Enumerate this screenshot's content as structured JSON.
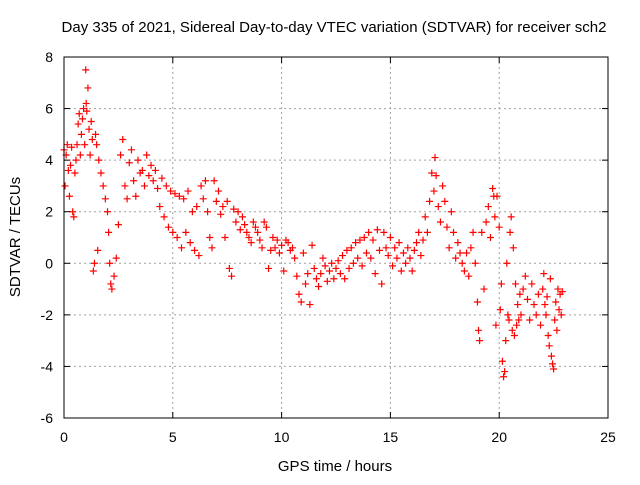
{
  "chart_data": {
    "type": "scatter",
    "title": "Day 335 of 2021, Sidereal Day-to-day VTEC variation (SDTVAR) for receiver sch2",
    "xlabel": "GPS time / hours",
    "ylabel": "SDTVAR / TECUs",
    "xlim": [
      0,
      25
    ],
    "ylim": [
      -6,
      8
    ],
    "xticks": [
      0,
      5,
      10,
      15,
      20,
      25
    ],
    "yticks": [
      -6,
      -4,
      -2,
      0,
      2,
      4,
      6,
      8
    ],
    "grid": true,
    "marker": "+",
    "color": "#ff0000",
    "series": [
      {
        "name": "SDTVAR",
        "points": [
          [
            0.0,
            4.4
          ],
          [
            0.05,
            3.0
          ],
          [
            0.1,
            4.2
          ],
          [
            0.15,
            4.6
          ],
          [
            0.2,
            3.6
          ],
          [
            0.25,
            2.6
          ],
          [
            0.3,
            3.8
          ],
          [
            0.35,
            4.5
          ],
          [
            0.4,
            2.0
          ],
          [
            0.45,
            1.8
          ],
          [
            0.5,
            3.5
          ],
          [
            0.55,
            4.0
          ],
          [
            0.6,
            4.6
          ],
          [
            0.65,
            5.4
          ],
          [
            0.7,
            5.8
          ],
          [
            0.75,
            4.2
          ],
          [
            0.8,
            5.0
          ],
          [
            0.85,
            5.6
          ],
          [
            0.9,
            6.0
          ],
          [
            0.95,
            4.6
          ],
          [
            1.0,
            7.5
          ],
          [
            1.02,
            6.2
          ],
          [
            1.05,
            5.9
          ],
          [
            1.1,
            6.8
          ],
          [
            1.15,
            5.2
          ],
          [
            1.2,
            4.2
          ],
          [
            1.25,
            5.5
          ],
          [
            1.3,
            4.8
          ],
          [
            1.35,
            -0.3
          ],
          [
            1.4,
            0.0
          ],
          [
            1.45,
            5.0
          ],
          [
            1.5,
            4.6
          ],
          [
            1.55,
            0.5
          ],
          [
            1.6,
            4.0
          ],
          [
            1.7,
            3.5
          ],
          [
            1.8,
            3.0
          ],
          [
            1.9,
            2.5
          ],
          [
            2.0,
            2.0
          ],
          [
            2.05,
            1.2
          ],
          [
            2.1,
            0.0
          ],
          [
            2.15,
            -0.8
          ],
          [
            2.2,
            -1.0
          ],
          [
            2.3,
            -0.5
          ],
          [
            2.4,
            0.2
          ],
          [
            2.5,
            1.5
          ],
          [
            2.6,
            4.2
          ],
          [
            2.7,
            4.8
          ],
          [
            2.8,
            3.0
          ],
          [
            2.9,
            2.5
          ],
          [
            3.0,
            3.9
          ],
          [
            3.1,
            4.4
          ],
          [
            3.2,
            3.2
          ],
          [
            3.3,
            2.6
          ],
          [
            3.4,
            4.0
          ],
          [
            3.5,
            3.5
          ],
          [
            3.6,
            3.6
          ],
          [
            3.7,
            3.0
          ],
          [
            3.8,
            4.2
          ],
          [
            3.9,
            3.4
          ],
          [
            4.0,
            3.8
          ],
          [
            4.1,
            3.2
          ],
          [
            4.2,
            3.6
          ],
          [
            4.3,
            2.9
          ],
          [
            4.4,
            2.2
          ],
          [
            4.5,
            3.3
          ],
          [
            4.6,
            1.8
          ],
          [
            4.7,
            3.0
          ],
          [
            4.8,
            1.4
          ],
          [
            4.9,
            2.8
          ],
          [
            5.0,
            1.2
          ],
          [
            5.1,
            2.7
          ],
          [
            5.2,
            1.0
          ],
          [
            5.3,
            2.6
          ],
          [
            5.4,
            0.6
          ],
          [
            5.5,
            2.5
          ],
          [
            5.6,
            1.2
          ],
          [
            5.7,
            2.8
          ],
          [
            5.8,
            0.8
          ],
          [
            5.9,
            2.0
          ],
          [
            6.0,
            0.5
          ],
          [
            6.1,
            2.2
          ],
          [
            6.2,
            0.3
          ],
          [
            6.3,
            3.0
          ],
          [
            6.4,
            2.5
          ],
          [
            6.5,
            3.2
          ],
          [
            6.6,
            2.0
          ],
          [
            6.7,
            1.0
          ],
          [
            6.8,
            0.6
          ],
          [
            6.9,
            3.2
          ],
          [
            7.0,
            2.4
          ],
          [
            7.1,
            2.8
          ],
          [
            7.2,
            1.9
          ],
          [
            7.3,
            2.2
          ],
          [
            7.4,
            1.0
          ],
          [
            7.5,
            2.4
          ],
          [
            7.6,
            -0.2
          ],
          [
            7.7,
            -0.5
          ],
          [
            7.8,
            2.1
          ],
          [
            7.9,
            1.6
          ],
          [
            8.0,
            2.0
          ],
          [
            8.1,
            1.3
          ],
          [
            8.2,
            1.8
          ],
          [
            8.3,
            1.5
          ],
          [
            8.4,
            1.2
          ],
          [
            8.5,
            1.0
          ],
          [
            8.6,
            0.8
          ],
          [
            8.7,
            1.6
          ],
          [
            8.8,
            1.4
          ],
          [
            8.9,
            1.2
          ],
          [
            9.0,
            0.9
          ],
          [
            9.1,
            0.6
          ],
          [
            9.2,
            1.6
          ],
          [
            9.3,
            1.4
          ],
          [
            9.4,
            -0.2
          ],
          [
            9.5,
            0.5
          ],
          [
            9.6,
            1.0
          ],
          [
            9.7,
            0.6
          ],
          [
            9.8,
            0.9
          ],
          [
            9.9,
            0.4
          ],
          [
            10.0,
            0.7
          ],
          [
            10.1,
            -0.3
          ],
          [
            10.2,
            0.9
          ],
          [
            10.3,
            0.8
          ],
          [
            10.4,
            0.5
          ],
          [
            10.5,
            0.6
          ],
          [
            10.6,
            0.2
          ],
          [
            10.7,
            -0.5
          ],
          [
            10.8,
            -1.2
          ],
          [
            10.9,
            -1.5
          ],
          [
            11.0,
            0.4
          ],
          [
            11.1,
            -0.8
          ],
          [
            11.2,
            -0.4
          ],
          [
            11.3,
            -1.6
          ],
          [
            11.4,
            0.7
          ],
          [
            11.5,
            -0.2
          ],
          [
            11.6,
            -0.6
          ],
          [
            11.7,
            -0.9
          ],
          [
            11.8,
            -0.4
          ],
          [
            11.9,
            0.2
          ],
          [
            12.0,
            -0.1
          ],
          [
            12.1,
            -0.7
          ],
          [
            12.2,
            -0.3
          ],
          [
            12.3,
            0.0
          ],
          [
            12.4,
            -0.6
          ],
          [
            12.5,
            -0.2
          ],
          [
            12.6,
            0.1
          ],
          [
            12.7,
            -0.4
          ],
          [
            12.8,
            0.3
          ],
          [
            12.9,
            -0.6
          ],
          [
            13.0,
            0.5
          ],
          [
            13.1,
            -0.2
          ],
          [
            13.2,
            0.6
          ],
          [
            13.3,
            0.0
          ],
          [
            13.4,
            0.8
          ],
          [
            13.5,
            0.2
          ],
          [
            13.6,
            0.9
          ],
          [
            13.7,
            -0.1
          ],
          [
            13.8,
            1.0
          ],
          [
            13.9,
            0.4
          ],
          [
            14.0,
            1.2
          ],
          [
            14.1,
            0.2
          ],
          [
            14.2,
            0.9
          ],
          [
            14.3,
            -0.4
          ],
          [
            14.4,
            1.3
          ],
          [
            14.5,
            0.5
          ],
          [
            14.6,
            -0.8
          ],
          [
            14.7,
            1.2
          ],
          [
            14.8,
            0.6
          ],
          [
            14.9,
            0.3
          ],
          [
            15.0,
            1.0
          ],
          [
            15.1,
            -0.1
          ],
          [
            15.2,
            0.6
          ],
          [
            15.3,
            0.2
          ],
          [
            15.4,
            0.8
          ],
          [
            15.5,
            -0.3
          ],
          [
            15.6,
            0.4
          ],
          [
            15.7,
            0.0
          ],
          [
            15.8,
            0.6
          ],
          [
            15.9,
            0.2
          ],
          [
            16.0,
            -0.3
          ],
          [
            16.1,
            0.5
          ],
          [
            16.2,
            0.8
          ],
          [
            16.3,
            1.2
          ],
          [
            16.4,
            0.3
          ],
          [
            16.5,
            0.9
          ],
          [
            16.6,
            1.8
          ],
          [
            16.7,
            1.2
          ],
          [
            16.8,
            2.4
          ],
          [
            16.9,
            3.5
          ],
          [
            17.0,
            2.8
          ],
          [
            17.05,
            4.1
          ],
          [
            17.1,
            3.4
          ],
          [
            17.2,
            2.2
          ],
          [
            17.3,
            1.6
          ],
          [
            17.4,
            3.0
          ],
          [
            17.5,
            2.4
          ],
          [
            17.6,
            1.4
          ],
          [
            17.7,
            0.6
          ],
          [
            17.8,
            2.0
          ],
          [
            17.9,
            1.2
          ],
          [
            18.0,
            0.2
          ],
          [
            18.1,
            0.8
          ],
          [
            18.2,
            0.4
          ],
          [
            18.3,
            0.0
          ],
          [
            18.4,
            -0.3
          ],
          [
            18.5,
            0.4
          ],
          [
            18.6,
            -0.5
          ],
          [
            18.7,
            0.6
          ],
          [
            18.8,
            1.2
          ],
          [
            18.9,
            0.0
          ],
          [
            19.0,
            -1.5
          ],
          [
            19.05,
            -2.6
          ],
          [
            19.1,
            -3.0
          ],
          [
            19.2,
            1.2
          ],
          [
            19.3,
            -1.0
          ],
          [
            19.4,
            1.6
          ],
          [
            19.5,
            2.2
          ],
          [
            19.6,
            1.0
          ],
          [
            19.7,
            2.9
          ],
          [
            19.75,
            2.6
          ],
          [
            19.8,
            1.8
          ],
          [
            19.85,
            -2.4
          ],
          [
            19.9,
            2.6
          ],
          [
            20.0,
            1.4
          ],
          [
            20.05,
            -1.8
          ],
          [
            20.1,
            -0.8
          ],
          [
            20.15,
            -3.8
          ],
          [
            20.2,
            -4.4
          ],
          [
            20.25,
            -4.2
          ],
          [
            20.3,
            -3.0
          ],
          [
            20.35,
            0.0
          ],
          [
            20.4,
            -2.0
          ],
          [
            20.45,
            -2.2
          ],
          [
            20.5,
            1.2
          ],
          [
            20.55,
            1.8
          ],
          [
            20.6,
            -2.6
          ],
          [
            20.65,
            0.6
          ],
          [
            20.7,
            -2.8
          ],
          [
            20.75,
            -0.8
          ],
          [
            20.8,
            -2.4
          ],
          [
            20.85,
            -1.6
          ],
          [
            20.9,
            -2.2
          ],
          [
            20.95,
            -1.2
          ],
          [
            21.0,
            -2.0
          ],
          [
            21.1,
            -1.0
          ],
          [
            21.2,
            -0.5
          ],
          [
            21.3,
            -1.4
          ],
          [
            21.4,
            -2.2
          ],
          [
            21.5,
            -0.8
          ],
          [
            21.6,
            -1.6
          ],
          [
            21.7,
            -2.0
          ],
          [
            21.8,
            -1.2
          ],
          [
            21.9,
            -2.4
          ],
          [
            22.0,
            -1.0
          ],
          [
            22.05,
            -0.4
          ],
          [
            22.1,
            -1.6
          ],
          [
            22.15,
            -2.0
          ],
          [
            22.2,
            -1.3
          ],
          [
            22.25,
            -2.8
          ],
          [
            22.3,
            -3.2
          ],
          [
            22.35,
            -0.6
          ],
          [
            22.4,
            -3.6
          ],
          [
            22.45,
            -3.9
          ],
          [
            22.5,
            -4.1
          ],
          [
            22.55,
            -2.2
          ],
          [
            22.6,
            -1.5
          ],
          [
            22.65,
            -2.6
          ],
          [
            22.7,
            -1.0
          ],
          [
            22.75,
            -1.8
          ],
          [
            22.8,
            -1.2
          ],
          [
            22.85,
            -2.0
          ],
          [
            22.9,
            -1.1
          ]
        ]
      }
    ]
  }
}
